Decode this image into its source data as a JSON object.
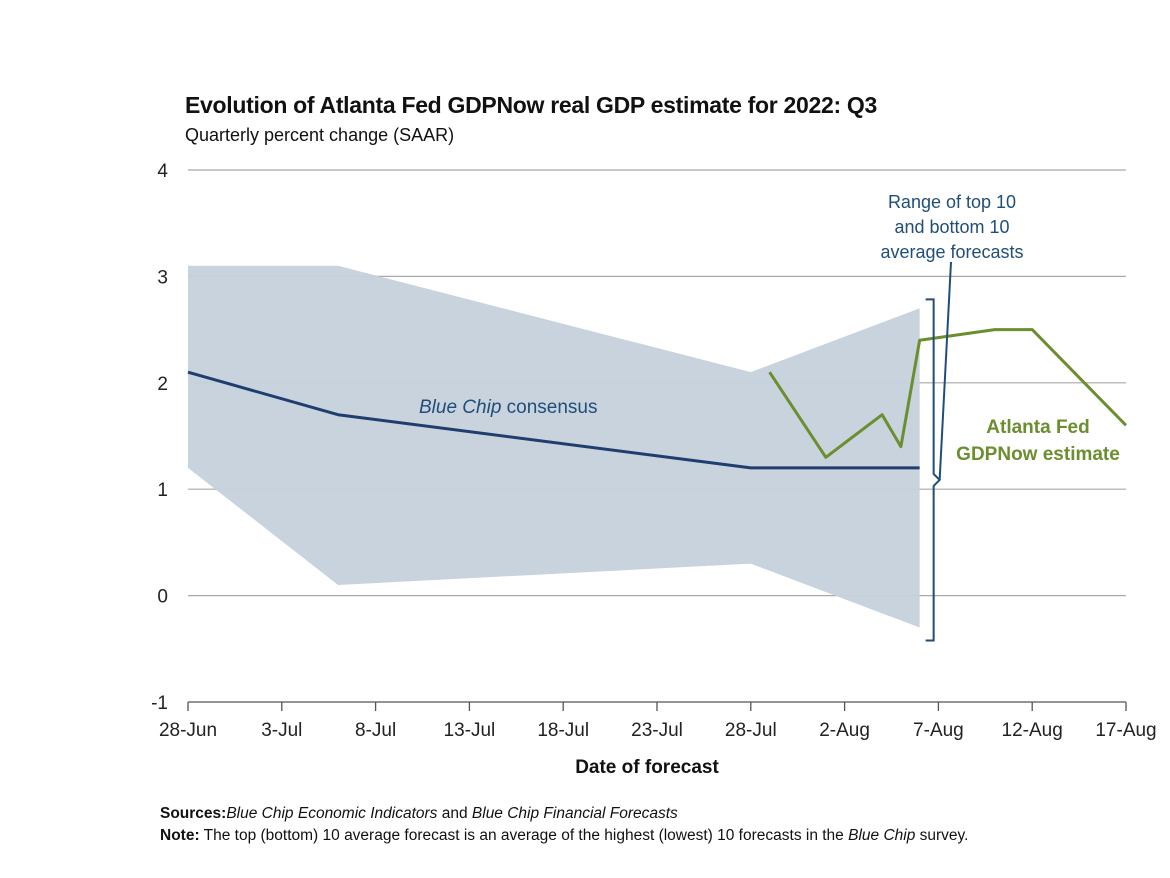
{
  "header": {
    "title": "Evolution of Atlanta Fed GDPNow real GDP estimate for 2022: Q3",
    "subtitle": "Quarterly percent change (SAAR)"
  },
  "chart_data": {
    "type": "line",
    "title": "Evolution of Atlanta Fed GDPNow real GDP estimate for 2022: Q3",
    "subtitle": "Quarterly percent change (SAAR)",
    "xlabel": "Date of forecast",
    "ylabel": "",
    "x_ticks": [
      "28-Jun",
      "3-Jul",
      "8-Jul",
      "13-Jul",
      "18-Jul",
      "23-Jul",
      "28-Jul",
      "2-Aug",
      "7-Aug",
      "12-Aug",
      "17-Aug"
    ],
    "x_range": [
      "2022-06-28",
      "2022-08-17"
    ],
    "y_ticks": [
      "4",
      "3",
      "2",
      "1",
      "0",
      "-1"
    ],
    "ylim": [
      -1,
      4
    ],
    "grid": "horizontal",
    "series": [
      {
        "name": "Blue Chip consensus",
        "color": "#1f3d6e",
        "points": [
          {
            "x": "2022-06-28",
            "y": 2.1
          },
          {
            "x": "2022-07-06",
            "y": 1.7
          },
          {
            "x": "2022-07-28",
            "y": 1.2
          },
          {
            "x": "2022-08-06",
            "y": 1.2
          }
        ]
      },
      {
        "name": "Atlanta Fed GDPNow estimate",
        "color": "#6b8e2e",
        "points": [
          {
            "x": "2022-07-29",
            "y": 2.1
          },
          {
            "x": "2022-08-01",
            "y": 1.3
          },
          {
            "x": "2022-08-04",
            "y": 1.7
          },
          {
            "x": "2022-08-05",
            "y": 1.4
          },
          {
            "x": "2022-08-06",
            "y": 2.4
          },
          {
            "x": "2022-08-10",
            "y": 2.5
          },
          {
            "x": "2022-08-12",
            "y": 2.5
          },
          {
            "x": "2022-08-17",
            "y": 1.6
          }
        ]
      }
    ],
    "range_band": {
      "name": "Range of top 10 and bottom 10 average forecasts",
      "color": "#c5d1db",
      "upper": [
        {
          "x": "2022-06-28",
          "y": 3.1
        },
        {
          "x": "2022-07-06",
          "y": 3.1
        },
        {
          "x": "2022-07-28",
          "y": 2.1
        },
        {
          "x": "2022-08-06",
          "y": 2.7
        }
      ],
      "lower": [
        {
          "x": "2022-06-28",
          "y": 1.2
        },
        {
          "x": "2022-07-06",
          "y": 0.1
        },
        {
          "x": "2022-07-28",
          "y": 0.3
        },
        {
          "x": "2022-08-06",
          "y": -0.3
        }
      ]
    },
    "annotations": {
      "range_label": [
        "Range of top 10",
        "and bottom 10",
        "average forecasts"
      ],
      "blue_chip_label_italic": "Blue Chip",
      "blue_chip_label_rest": " consensus",
      "gdpnow_label": [
        "Atlanta Fed",
        "GDPNow estimate"
      ]
    }
  },
  "footer": {
    "sources_label": "Sources:",
    "sources_italic_1": "Blue Chip Economic Indicators",
    "sources_mid": " and ",
    "sources_italic_2": "Blue Chip Financial Forecasts",
    "note_label": "Note:",
    "note_text": " The top (bottom) 10 average forecast is an average of the highest (lowest) 10 forecasts in the ",
    "note_italic": "Blue Chip",
    "note_end": " survey."
  }
}
